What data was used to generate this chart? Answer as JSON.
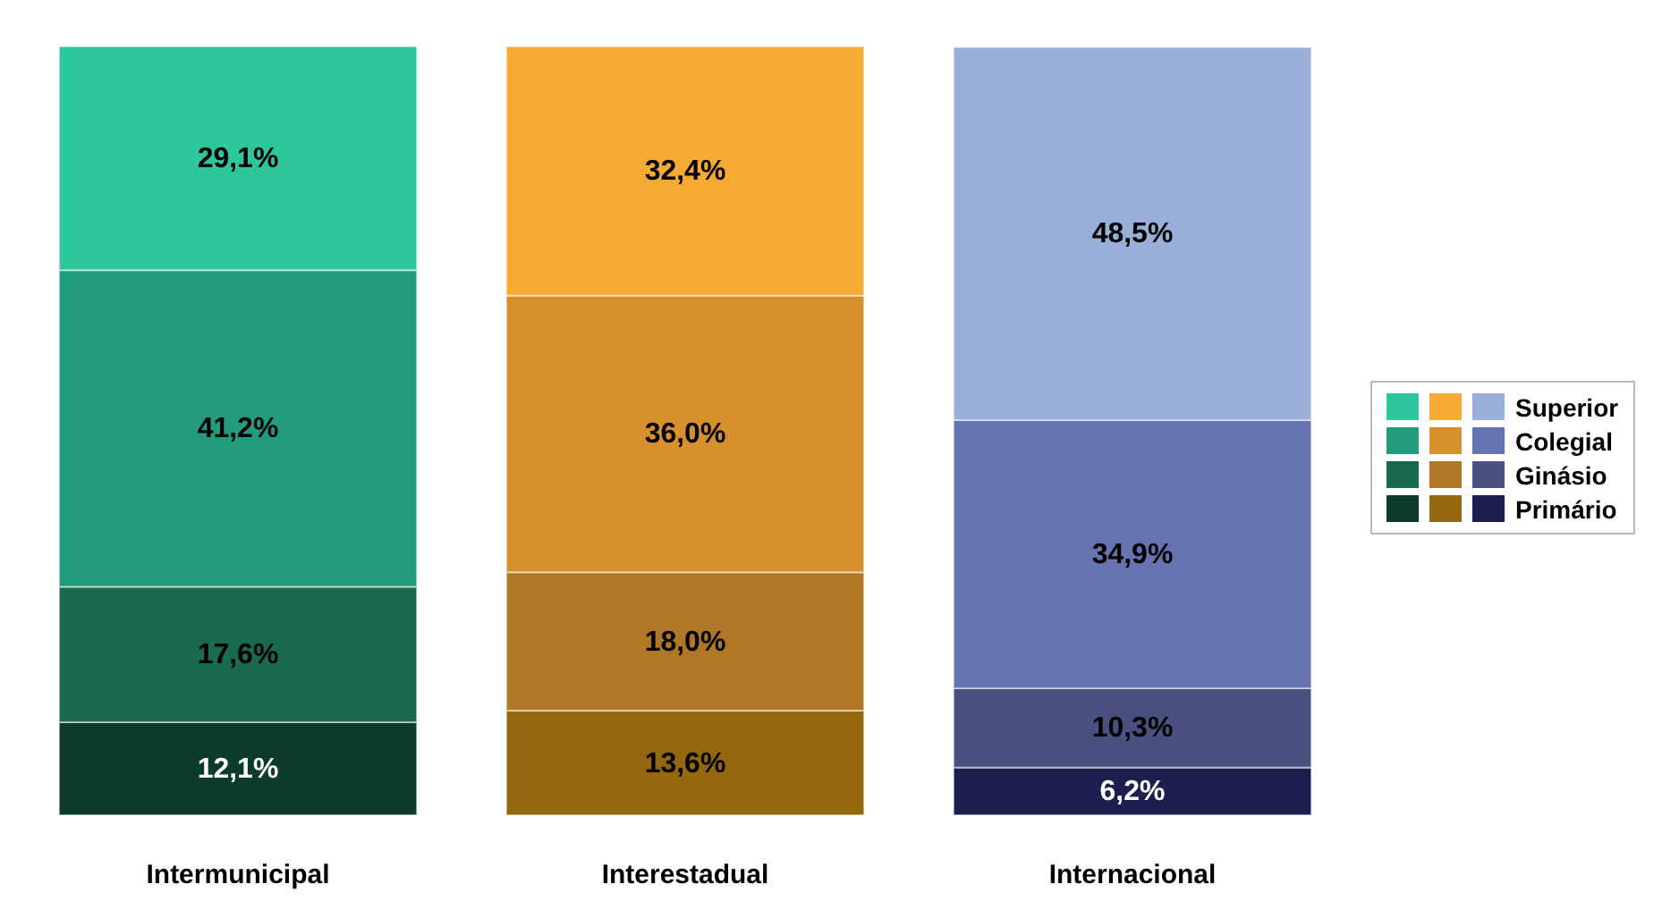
{
  "chart_data": {
    "type": "bar",
    "stacked": true,
    "categories": [
      "Intermunicipal",
      "Interestadual",
      "Internacional"
    ],
    "legend": "right",
    "data_labels": false,
    "series": [
      {
        "name": "Primário",
        "colors": [
          "#0c3a2c",
          "#93680f",
          "#1c2050"
        ],
        "values": [
          12.1,
          13.6,
          6.2
        ],
        "value_labels": [
          "12,1%",
          "13,6%",
          "6,2%"
        ]
      },
      {
        "name": "Ginásio",
        "colors": [
          "#1a6a50",
          "#b07826",
          "#4a5080"
        ],
        "values": [
          17.6,
          18.0,
          10.3
        ],
        "value_labels": [
          "17,6%",
          "18,0%",
          "10,3%"
        ]
      },
      {
        "name": "Colegial",
        "colors": [
          "#239c7e",
          "#d6912c",
          "#6574b0"
        ],
        "values": [
          41.2,
          36.0,
          34.9
        ],
        "value_labels": [
          "41,2%",
          "36,0%",
          "34,9%"
        ]
      },
      {
        "name": "Superior",
        "colors": [
          "#2ec79b",
          "#f5aa33",
          "#9aafd8"
        ],
        "values": [
          29.1,
          32.4,
          48.5
        ],
        "value_labels": [
          "29,1%",
          "32,4%",
          "48,5%"
        ]
      }
    ]
  }
}
